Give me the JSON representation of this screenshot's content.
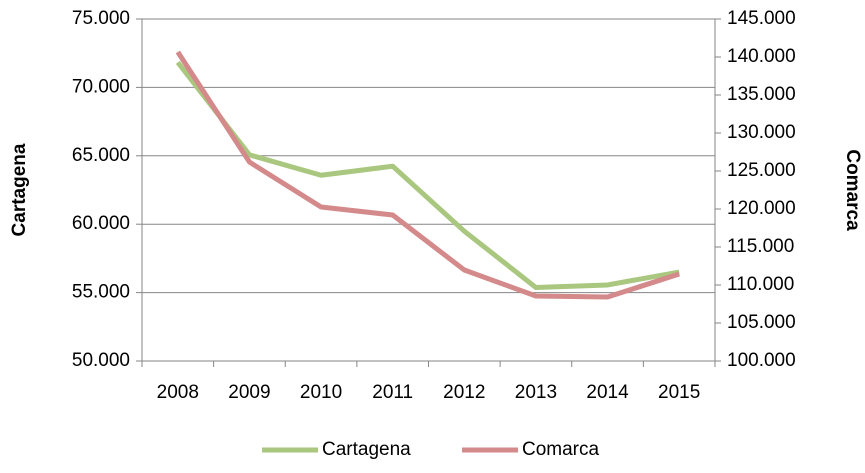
{
  "chart_data": {
    "type": "line",
    "categories": [
      "2008",
      "2009",
      "2010",
      "2011",
      "2012",
      "2013",
      "2014",
      "2015"
    ],
    "ylabel": "Cartagena",
    "y2label": "Comarca",
    "ylim": [
      50000,
      75000
    ],
    "yticks": [
      {
        "value": 50000,
        "label": "50.000"
      },
      {
        "value": 55000,
        "label": "55.000"
      },
      {
        "value": 60000,
        "label": "60.000"
      },
      {
        "value": 65000,
        "label": "65.000"
      },
      {
        "value": 70000,
        "label": "70.000"
      },
      {
        "value": 75000,
        "label": "75.000"
      }
    ],
    "y2lim": [
      100000,
      145000
    ],
    "y2ticks": [
      {
        "value": 100000,
        "label": "100.000"
      },
      {
        "value": 105000,
        "label": "105.000"
      },
      {
        "value": 110000,
        "label": "110.000"
      },
      {
        "value": 115000,
        "label": "115.000"
      },
      {
        "value": 120000,
        "label": "120.000"
      },
      {
        "value": 125000,
        "label": "125.000"
      },
      {
        "value": 130000,
        "label": "130.000"
      },
      {
        "value": 135000,
        "label": "135.000"
      },
      {
        "value": 140000,
        "label": "140.000"
      },
      {
        "value": 145000,
        "label": "145.000"
      }
    ],
    "grid": true,
    "legend": "bottom",
    "series": [
      {
        "name": "Cartagena",
        "color": "#a9c77e",
        "values": [
          71830,
          65070,
          63580,
          64240,
          59490,
          55370,
          55560,
          56500
        ]
      },
      {
        "name": "Comarca",
        "color": "#d48a8a",
        "axis": "y2",
        "values": [
          140660,
          126180,
          120260,
          119210,
          111970,
          108550,
          108420,
          111450
        ]
      }
    ]
  }
}
